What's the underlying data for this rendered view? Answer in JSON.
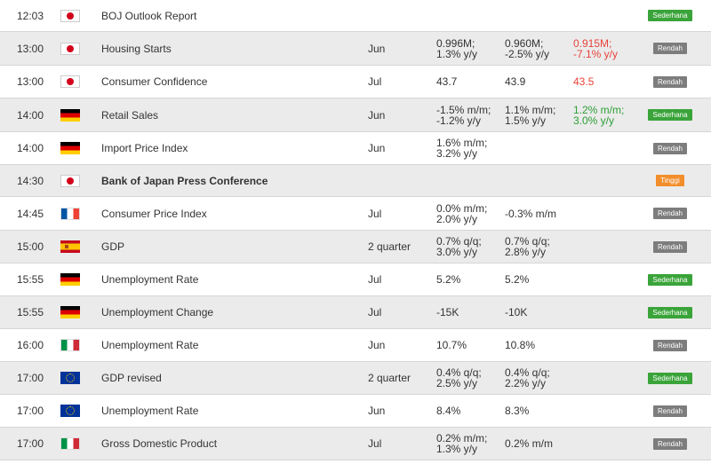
{
  "colors": {
    "row_alt": "#ebebeb",
    "negative": "#e8433a",
    "positive": "#2b9f34",
    "impact_sederhana": "#3aa43a",
    "impact_rendah": "#7d7d7d",
    "impact_tinggi": "#f28e2b"
  },
  "events": [
    {
      "time": "12:03",
      "flag": "japan-flag-icon",
      "country": "jp",
      "name": "BOJ Outlook Report",
      "bold": false,
      "period": "",
      "actual": "",
      "forecast": "",
      "previous": "",
      "previous_color": "",
      "actual_color": "",
      "impact": "Sederhana",
      "impact_color": "#3aa43a"
    },
    {
      "time": "13:00",
      "flag": "japan-flag-icon",
      "country": "jp",
      "name": "Housing Starts",
      "bold": false,
      "period": "Jun",
      "actual": "0.996M;\n1.3% y/y",
      "forecast": "0.960M;\n-2.5% y/y",
      "previous": "0.915M;\n-7.1% y/y",
      "previous_color": "red",
      "actual_color": "",
      "impact": "Rendah",
      "impact_color": "#7d7d7d"
    },
    {
      "time": "13:00",
      "flag": "japan-flag-icon",
      "country": "jp",
      "name": "Consumer Confidence",
      "bold": false,
      "period": "Jul",
      "actual": "43.7",
      "forecast": "43.9",
      "previous": "43.5",
      "previous_color": "red",
      "actual_color": "",
      "impact": "Rendah",
      "impact_color": "#7d7d7d"
    },
    {
      "time": "14:00",
      "flag": "germany-flag-icon",
      "country": "de",
      "name": "Retail Sales",
      "bold": false,
      "period": "Jun",
      "actual": "-1.5% m/m;\n-1.2% y/y",
      "forecast": "1.1% m/m;\n1.5% y/y",
      "previous": "1.2% m/m;\n3.0% y/y",
      "previous_color": "green",
      "actual_color": "",
      "impact": "Sederhana",
      "impact_color": "#3aa43a"
    },
    {
      "time": "14:00",
      "flag": "germany-flag-icon",
      "country": "de",
      "name": "Import Price Index",
      "bold": false,
      "period": "Jun",
      "actual": "1.6% m/m;\n3.2% y/y",
      "forecast": "",
      "previous": "",
      "previous_color": "",
      "actual_color": "",
      "impact": "Rendah",
      "impact_color": "#7d7d7d"
    },
    {
      "time": "14:30",
      "flag": "japan-flag-icon",
      "country": "jp",
      "name": "Bank of Japan Press Conference",
      "bold": true,
      "period": "",
      "actual": "",
      "forecast": "",
      "previous": "",
      "previous_color": "",
      "actual_color": "",
      "impact": "Tinggi",
      "impact_color": "#f28e2b"
    },
    {
      "time": "14:45",
      "flag": "france-flag-icon",
      "country": "fr",
      "name": "Consumer Price Index",
      "bold": false,
      "period": "Jul",
      "actual": "0.0% m/m;\n2.0% y/y",
      "forecast": "-0.3% m/m",
      "previous": "",
      "previous_color": "",
      "actual_color": "",
      "impact": "Rendah",
      "impact_color": "#7d7d7d"
    },
    {
      "time": "15:00",
      "flag": "spain-flag-icon",
      "country": "es",
      "name": "GDP",
      "bold": false,
      "period": "2 quarter",
      "actual": "0.7% q/q;\n3.0% y/y",
      "forecast": "0.7% q/q;\n2.8% y/y",
      "previous": "",
      "previous_color": "",
      "actual_color": "",
      "impact": "Rendah",
      "impact_color": "#7d7d7d"
    },
    {
      "time": "15:55",
      "flag": "germany-flag-icon",
      "country": "de",
      "name": "Unemployment Rate",
      "bold": false,
      "period": "Jul",
      "actual": "5.2%",
      "forecast": "5.2%",
      "previous": "",
      "previous_color": "",
      "actual_color": "",
      "impact": "Sederhana",
      "impact_color": "#3aa43a"
    },
    {
      "time": "15:55",
      "flag": "germany-flag-icon",
      "country": "de",
      "name": "Unemployment Change",
      "bold": false,
      "period": "Jul",
      "actual": "-15K",
      "forecast": "-10K",
      "previous": "",
      "previous_color": "",
      "actual_color": "",
      "impact": "Sederhana",
      "impact_color": "#3aa43a"
    },
    {
      "time": "16:00",
      "flag": "italy-flag-icon",
      "country": "it",
      "name": "Unemployment Rate",
      "bold": false,
      "period": "Jun",
      "actual": "10.7%",
      "forecast": "10.8%",
      "previous": "",
      "previous_color": "",
      "actual_color": "",
      "impact": "Rendah",
      "impact_color": "#7d7d7d"
    },
    {
      "time": "17:00",
      "flag": "eu-flag-icon",
      "country": "eu",
      "name": "GDP revised",
      "bold": false,
      "period": "2 quarter",
      "actual": "0.4% q/q;\n2.5% y/y",
      "forecast": "0.4% q/q;\n2.2% y/y",
      "previous": "",
      "previous_color": "",
      "actual_color": "",
      "impact": "Sederhana",
      "impact_color": "#3aa43a"
    },
    {
      "time": "17:00",
      "flag": "eu-flag-icon",
      "country": "eu",
      "name": "Unemployment Rate",
      "bold": false,
      "period": "Jun",
      "actual": "8.4%",
      "forecast": "8.3%",
      "previous": "",
      "previous_color": "",
      "actual_color": "",
      "impact": "Rendah",
      "impact_color": "#7d7d7d"
    },
    {
      "time": "17:00",
      "flag": "italy-flag-icon",
      "country": "it",
      "name": "Gross Domestic Product",
      "bold": false,
      "period": "Jul",
      "actual": "0.2% m/m;\n1.3% y/y",
      "forecast": "0.2% m/m",
      "previous": "",
      "previous_color": "",
      "actual_color": "",
      "impact": "Rendah",
      "impact_color": "#7d7d7d"
    }
  ]
}
